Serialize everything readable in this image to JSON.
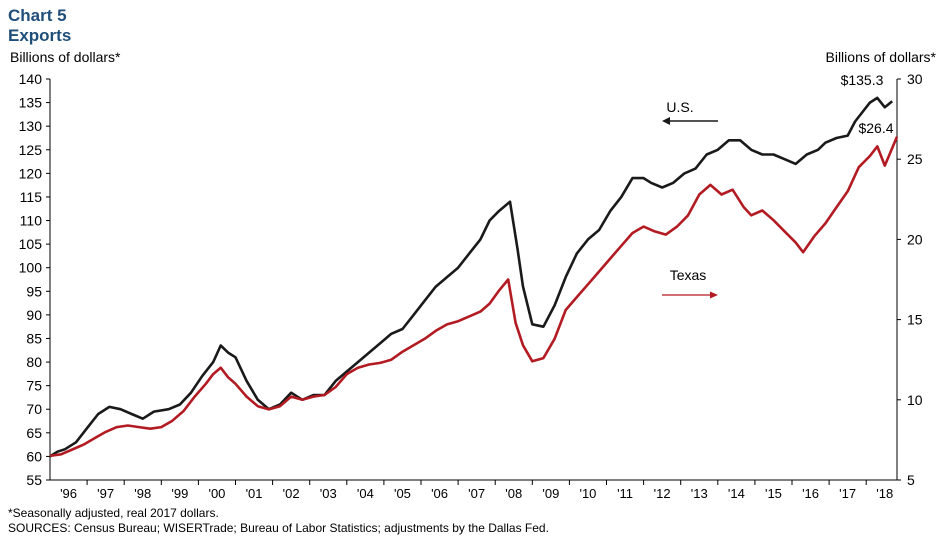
{
  "header": {
    "chart_number": "Chart 5",
    "title": "Exports"
  },
  "footnotes": {
    "note": "*Seasonally adjusted, real 2017 dollars.",
    "sources": "SOURCES: Census Bureau; WISERTrade; Bureau of Labor Statistics; adjustments by the Dallas Fed."
  },
  "chart_data": {
    "type": "line",
    "title": "Exports",
    "ylabel_left": "Billions of dollars*",
    "ylabel_right": "Billions of dollars*",
    "left_axis": {
      "min": 55,
      "max": 140,
      "step": 5
    },
    "right_axis": {
      "min": 5,
      "max": 30,
      "step": 5
    },
    "x_range": [
      1996.0,
      2018.83
    ],
    "x_tick_labels": [
      "'96",
      "'97",
      "'98",
      "'99",
      "'00",
      "'01",
      "'02",
      "'03",
      "'04",
      "'05",
      "'06",
      "'07",
      "'08",
      "'09",
      "'10",
      "'11",
      "'12",
      "'13",
      "'14",
      "'15",
      "'16",
      "'17",
      "'18"
    ],
    "legend": {
      "us_label": "U.S.",
      "texas_label": "Texas"
    },
    "annotations": {
      "us_last": "$135.3",
      "texas_last": "$26.4"
    },
    "colors": {
      "us": "#1a1a1a",
      "texas": "#b31b23"
    },
    "series": [
      {
        "name": "U.S.",
        "axis": "left",
        "points": [
          [
            1996.0,
            60
          ],
          [
            1996.2,
            61
          ],
          [
            1996.4,
            61.5
          ],
          [
            1996.7,
            63
          ],
          [
            1997.0,
            66
          ],
          [
            1997.3,
            69
          ],
          [
            1997.6,
            70.5
          ],
          [
            1997.9,
            70
          ],
          [
            1998.2,
            69
          ],
          [
            1998.5,
            68
          ],
          [
            1998.8,
            69.5
          ],
          [
            1999.2,
            70
          ],
          [
            1999.5,
            71
          ],
          [
            1999.8,
            73.5
          ],
          [
            2000.1,
            77
          ],
          [
            2000.4,
            80
          ],
          [
            2000.6,
            83.5
          ],
          [
            2000.8,
            82
          ],
          [
            2001.0,
            81
          ],
          [
            2001.3,
            76
          ],
          [
            2001.6,
            72
          ],
          [
            2001.9,
            70
          ],
          [
            2002.2,
            71
          ],
          [
            2002.5,
            73.5
          ],
          [
            2002.8,
            72
          ],
          [
            2003.1,
            73
          ],
          [
            2003.4,
            73
          ],
          [
            2003.7,
            76
          ],
          [
            2004.0,
            78
          ],
          [
            2004.3,
            80
          ],
          [
            2004.6,
            82
          ],
          [
            2004.9,
            84
          ],
          [
            2005.2,
            86
          ],
          [
            2005.5,
            87
          ],
          [
            2005.8,
            90
          ],
          [
            2006.1,
            93
          ],
          [
            2006.4,
            96
          ],
          [
            2006.7,
            98
          ],
          [
            2007.0,
            100
          ],
          [
            2007.3,
            103
          ],
          [
            2007.6,
            106
          ],
          [
            2007.85,
            110
          ],
          [
            2008.1,
            112
          ],
          [
            2008.4,
            114
          ],
          [
            2008.6,
            104
          ],
          [
            2008.75,
            96
          ],
          [
            2009.0,
            88
          ],
          [
            2009.3,
            87.5
          ],
          [
            2009.6,
            92
          ],
          [
            2009.9,
            98
          ],
          [
            2010.2,
            103
          ],
          [
            2010.5,
            106
          ],
          [
            2010.8,
            108
          ],
          [
            2011.1,
            112
          ],
          [
            2011.4,
            115
          ],
          [
            2011.7,
            119
          ],
          [
            2012.0,
            119
          ],
          [
            2012.2,
            118
          ],
          [
            2012.5,
            117
          ],
          [
            2012.8,
            118
          ],
          [
            2013.1,
            120
          ],
          [
            2013.4,
            121
          ],
          [
            2013.7,
            124
          ],
          [
            2014.0,
            125
          ],
          [
            2014.3,
            127
          ],
          [
            2014.6,
            127
          ],
          [
            2014.9,
            125
          ],
          [
            2015.2,
            124
          ],
          [
            2015.5,
            124
          ],
          [
            2015.8,
            123
          ],
          [
            2016.1,
            122
          ],
          [
            2016.4,
            124
          ],
          [
            2016.7,
            125
          ],
          [
            2016.9,
            126.5
          ],
          [
            2017.2,
            127.5
          ],
          [
            2017.5,
            128
          ],
          [
            2017.7,
            131
          ],
          [
            2017.9,
            133
          ],
          [
            2018.1,
            135
          ],
          [
            2018.3,
            136
          ],
          [
            2018.5,
            134
          ],
          [
            2018.7,
            135.3
          ]
        ]
      },
      {
        "name": "Texas",
        "axis": "right",
        "points": [
          [
            1996.0,
            6.5
          ],
          [
            1996.3,
            6.6
          ],
          [
            1996.6,
            6.9
          ],
          [
            1996.9,
            7.2
          ],
          [
            1997.2,
            7.6
          ],
          [
            1997.5,
            8.0
          ],
          [
            1997.8,
            8.3
          ],
          [
            1998.1,
            8.4
          ],
          [
            1998.4,
            8.3
          ],
          [
            1998.7,
            8.2
          ],
          [
            1999.0,
            8.3
          ],
          [
            1999.3,
            8.7
          ],
          [
            1999.6,
            9.3
          ],
          [
            1999.9,
            10.2
          ],
          [
            2000.2,
            11.0
          ],
          [
            2000.4,
            11.6
          ],
          [
            2000.6,
            12.0
          ],
          [
            2000.8,
            11.4
          ],
          [
            2001.0,
            11.0
          ],
          [
            2001.3,
            10.2
          ],
          [
            2001.6,
            9.6
          ],
          [
            2001.9,
            9.4
          ],
          [
            2002.2,
            9.6
          ],
          [
            2002.5,
            10.2
          ],
          [
            2002.8,
            10.0
          ],
          [
            2003.1,
            10.2
          ],
          [
            2003.4,
            10.3
          ],
          [
            2003.7,
            10.8
          ],
          [
            2004.0,
            11.6
          ],
          [
            2004.3,
            12.0
          ],
          [
            2004.6,
            12.2
          ],
          [
            2004.9,
            12.3
          ],
          [
            2005.2,
            12.5
          ],
          [
            2005.5,
            13.0
          ],
          [
            2005.8,
            13.4
          ],
          [
            2006.1,
            13.8
          ],
          [
            2006.4,
            14.3
          ],
          [
            2006.7,
            14.7
          ],
          [
            2007.0,
            14.9
          ],
          [
            2007.3,
            15.2
          ],
          [
            2007.6,
            15.5
          ],
          [
            2007.85,
            16.0
          ],
          [
            2008.1,
            16.8
          ],
          [
            2008.35,
            17.5
          ],
          [
            2008.55,
            14.8
          ],
          [
            2008.75,
            13.4
          ],
          [
            2009.0,
            12.4
          ],
          [
            2009.3,
            12.6
          ],
          [
            2009.6,
            13.8
          ],
          [
            2009.9,
            15.6
          ],
          [
            2010.2,
            16.4
          ],
          [
            2010.5,
            17.2
          ],
          [
            2010.8,
            18.0
          ],
          [
            2011.1,
            18.8
          ],
          [
            2011.4,
            19.6
          ],
          [
            2011.7,
            20.4
          ],
          [
            2012.0,
            20.8
          ],
          [
            2012.3,
            20.5
          ],
          [
            2012.6,
            20.3
          ],
          [
            2012.9,
            20.8
          ],
          [
            2013.2,
            21.5
          ],
          [
            2013.5,
            22.8
          ],
          [
            2013.8,
            23.4
          ],
          [
            2014.1,
            22.8
          ],
          [
            2014.4,
            23.1
          ],
          [
            2014.7,
            22.0
          ],
          [
            2014.9,
            21.5
          ],
          [
            2015.2,
            21.8
          ],
          [
            2015.5,
            21.2
          ],
          [
            2015.8,
            20.5
          ],
          [
            2016.1,
            19.8
          ],
          [
            2016.3,
            19.2
          ],
          [
            2016.6,
            20.2
          ],
          [
            2016.9,
            21.0
          ],
          [
            2017.2,
            22.0
          ],
          [
            2017.5,
            23.0
          ],
          [
            2017.8,
            24.5
          ],
          [
            2018.1,
            25.2
          ],
          [
            2018.3,
            25.8
          ],
          [
            2018.5,
            24.6
          ],
          [
            2018.83,
            26.4
          ]
        ]
      }
    ]
  }
}
